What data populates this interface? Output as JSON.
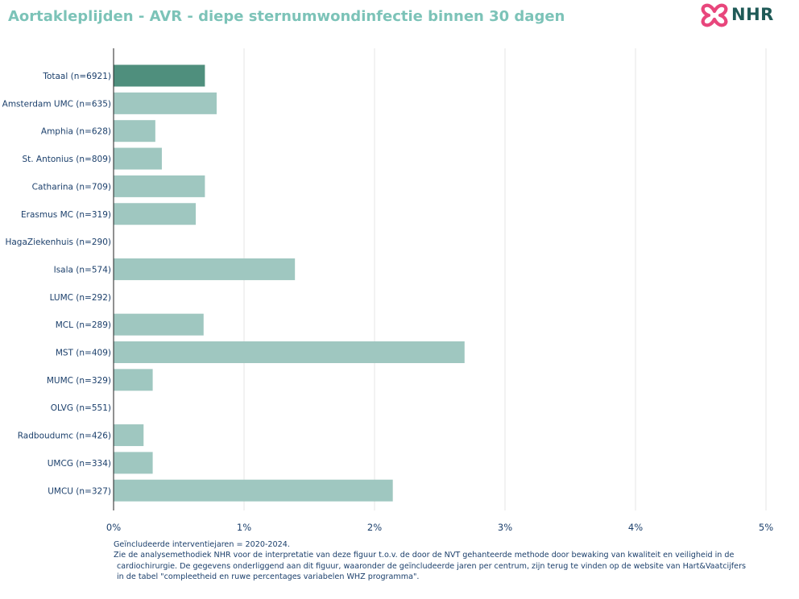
{
  "header": {
    "title": "Aortakleplijden - AVR - diepe sternumwondinfectie binnen 30 dagen",
    "logo_text": "NHR"
  },
  "colors": {
    "title": "#7cc3b8",
    "total_bar": "#4f8f7d",
    "center_bar": "#9fc7c0",
    "axis_text": "#1b3f6b",
    "grid": "#e6e6e6",
    "logo_pink": "#e8467c",
    "logo_dark": "#1f5a57"
  },
  "chart_data": {
    "type": "bar",
    "orientation": "horizontal",
    "categories": [
      "Totaal (n=6921)",
      "Amsterdam UMC (n=635)",
      "Amphia (n=628)",
      "St. Antonius (n=809)",
      "Catharina (n=709)",
      "Erasmus MC (n=319)",
      "HagaZiekenhuis (n=290)",
      "Isala (n=574)",
      "LUMC (n=292)",
      "MCL (n=289)",
      "MST (n=409)",
      "MUMC (n=329)",
      "OLVG (n=551)",
      "Radboudumc (n=426)",
      "UMCG (n=334)",
      "UMCU (n=327)"
    ],
    "values": [
      0.7,
      0.79,
      0.32,
      0.37,
      0.7,
      0.63,
      0,
      1.39,
      0,
      0.69,
      2.69,
      0.3,
      0,
      0.23,
      0.3,
      2.14
    ],
    "highlight_index": 0,
    "xlim": [
      0,
      5
    ],
    "xticks": [
      "0%",
      "1%",
      "2%",
      "3%",
      "4%",
      "5%"
    ],
    "grid": true
  },
  "footnote": {
    "line1": "Geïncludeerde interventiejaren = 2020-2024.",
    "line2": "Zie de analysemethodiek NHR voor de interpretatie van deze figuur t.o.v. de door de NVT gehanteerde methode door bewaking van kwaliteit en veiligheid in de",
    "line3": "cardiochirurgie. De gegevens onderliggend aan dit figuur, waaronder de geïncludeerde jaren per centrum, zijn terug te vinden op de website van Hart&Vaatcijfers",
    "line4": "in de tabel \"compleetheid en ruwe percentages variabelen WHZ programma\"."
  }
}
